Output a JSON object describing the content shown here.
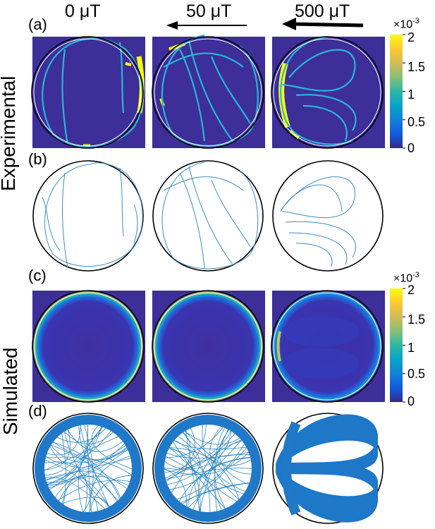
{
  "columns": [
    "0 μT",
    "50 μT",
    "500 μT"
  ],
  "panel_labels": [
    "(a)",
    "(b)",
    "(c)",
    "(d)"
  ],
  "row_labels": {
    "experimental": "Experimental",
    "simulated": "Simulated"
  },
  "colorbar": {
    "multiplier_base": "×10",
    "multiplier_exp": "-3",
    "ticks": [
      "2",
      "1.5",
      "1",
      "0.5",
      "0"
    ],
    "colormap": [
      "#352a87",
      "#0f5cdd",
      "#1481d6",
      "#06a4ca",
      "#2eb7a4",
      "#87bf77",
      "#d1bb59",
      "#fec832",
      "#f9fb0e"
    ]
  },
  "colors": {
    "heatmap_bg": "#3d2e99",
    "trajectory": "#2e86c1",
    "circle": "#000000"
  },
  "arrows": {
    "50 μT": "thin-left",
    "500 μT": "thick-left"
  }
}
